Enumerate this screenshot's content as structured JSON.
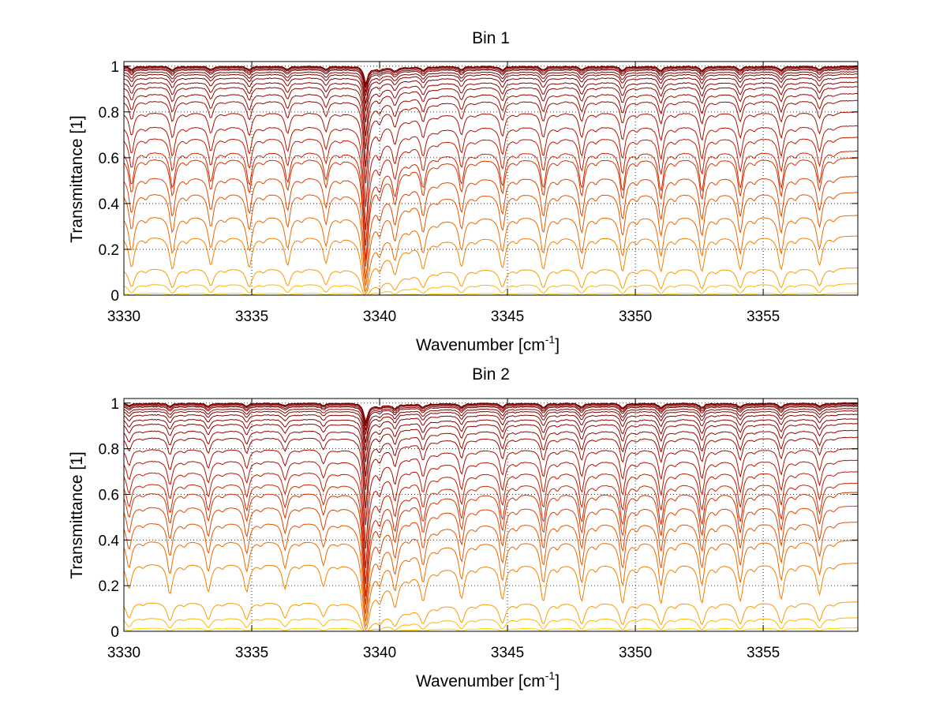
{
  "chart_data": [
    {
      "type": "line",
      "title": "Bin 1",
      "xlabel": "Wavenumber [cm",
      "xlabel_sup": "-1",
      "xlabel_end": "]",
      "ylabel": "Transmittance [1]",
      "xlim": [
        3330,
        3358.7
      ],
      "ylim": [
        0,
        1.02
      ],
      "grid": true,
      "xticks": [
        3330,
        3335,
        3340,
        3345,
        3350,
        3355
      ],
      "yticks": [
        0,
        0.2,
        0.4,
        0.6,
        0.8,
        1
      ],
      "xtick_labels": [
        "3330",
        "3335",
        "3340",
        "3345",
        "3350",
        "3355"
      ],
      "ytick_labels": [
        "0",
        "0.2",
        "0.4",
        "0.6",
        "0.8",
        "1"
      ],
      "colormap": [
        "#7a0000",
        "#c01800",
        "#e04a00",
        "#f07a00",
        "#ffb000",
        "#ffe000"
      ],
      "series_count": 24,
      "baseline_levels": [
        1.0,
        0.998,
        0.995,
        0.99,
        0.985,
        0.975,
        0.965,
        0.95,
        0.93,
        0.91,
        0.88,
        0.85,
        0.8,
        0.74,
        0.69,
        0.63,
        0.6,
        0.52,
        0.45,
        0.35,
        0.26,
        0.12,
        0.05,
        0.01
      ],
      "line_positions": [
        3330.3,
        3331.9,
        3333.4,
        3334.9,
        3336.4,
        3337.9,
        3339.45,
        3340.6,
        3341.7,
        3343.2,
        3344.8,
        3346.4,
        3347.9,
        3349.5,
        3351.0,
        3352.6,
        3354.1,
        3355.7,
        3357.2
      ],
      "line_strengths": [
        0.5,
        0.55,
        0.45,
        0.5,
        0.45,
        0.4,
        2.2,
        0.5,
        0.45,
        0.45,
        0.5,
        0.55,
        0.55,
        0.6,
        0.6,
        0.6,
        0.55,
        0.55,
        0.45
      ]
    },
    {
      "type": "line",
      "title": "Bin 2",
      "xlabel": "Wavenumber [cm",
      "xlabel_sup": "-1",
      "xlabel_end": "]",
      "ylabel": "Transmittance [1]",
      "xlim": [
        3330,
        3358.7
      ],
      "ylim": [
        0,
        1.02
      ],
      "grid": true,
      "xticks": [
        3330,
        3335,
        3340,
        3345,
        3350,
        3355
      ],
      "yticks": [
        0,
        0.2,
        0.4,
        0.6,
        0.8,
        1
      ],
      "xtick_labels": [
        "3330",
        "3335",
        "3340",
        "3345",
        "3350",
        "3355"
      ],
      "ytick_labels": [
        "0",
        "0.2",
        "0.4",
        "0.6",
        "0.8",
        "1"
      ],
      "colormap": [
        "#7a0000",
        "#c01800",
        "#e04a00",
        "#f07a00",
        "#ffb000",
        "#ffe000"
      ],
      "series_count": 24,
      "baseline_levels": [
        1.0,
        0.998,
        0.995,
        0.99,
        0.985,
        0.975,
        0.965,
        0.95,
        0.93,
        0.91,
        0.88,
        0.85,
        0.8,
        0.75,
        0.7,
        0.65,
        0.61,
        0.55,
        0.48,
        0.4,
        0.3,
        0.13,
        0.06,
        0.015
      ],
      "line_positions": [
        3330.2,
        3331.8,
        3333.3,
        3334.8,
        3336.3,
        3337.8,
        3339.45,
        3340.6,
        3341.7,
        3343.2,
        3344.8,
        3346.4,
        3347.9,
        3349.5,
        3351.0,
        3352.6,
        3354.1,
        3355.7,
        3357.2
      ],
      "line_strengths": [
        0.35,
        0.45,
        0.4,
        0.4,
        0.35,
        0.3,
        2.4,
        0.55,
        0.5,
        0.5,
        0.55,
        0.6,
        0.6,
        0.65,
        0.65,
        0.65,
        0.6,
        0.55,
        0.45
      ]
    }
  ]
}
